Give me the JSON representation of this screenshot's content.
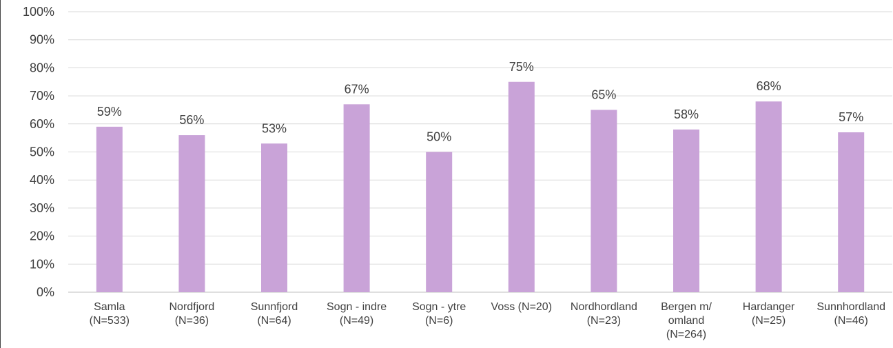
{
  "chart_data": {
    "type": "bar",
    "categories": [
      [
        "Samla",
        "(N=533)"
      ],
      [
        "Nordfjord",
        "(N=36)"
      ],
      [
        "Sunnfjord",
        "(N=64)"
      ],
      [
        "Sogn - indre",
        "(N=49)"
      ],
      [
        "Sogn - ytre",
        "(N=6)"
      ],
      [
        "Voss (N=20)"
      ],
      [
        "Nordhordland",
        "(N=23)"
      ],
      [
        "Bergen m/",
        "omland",
        "(N=264)"
      ],
      [
        "Hardanger",
        "(N=25)"
      ],
      [
        "Sunnhordland",
        "(N=46)"
      ]
    ],
    "values": [
      59,
      56,
      53,
      67,
      50,
      75,
      65,
      58,
      68,
      57
    ],
    "data_labels": [
      "59%",
      "56%",
      "53%",
      "67%",
      "50%",
      "75%",
      "65%",
      "58%",
      "68%",
      "57%"
    ],
    "ylim": [
      0,
      100
    ],
    "y_ticks": [
      0,
      10,
      20,
      30,
      40,
      50,
      60,
      70,
      80,
      90,
      100
    ],
    "y_tick_labels": [
      "0%",
      "10%",
      "20%",
      "30%",
      "40%",
      "50%",
      "60%",
      "70%",
      "80%",
      "90%",
      "100%"
    ],
    "grid": true,
    "legend": "none",
    "title": "",
    "xlabel": "",
    "ylabel": "",
    "bar_color": "#c9a3d8"
  }
}
